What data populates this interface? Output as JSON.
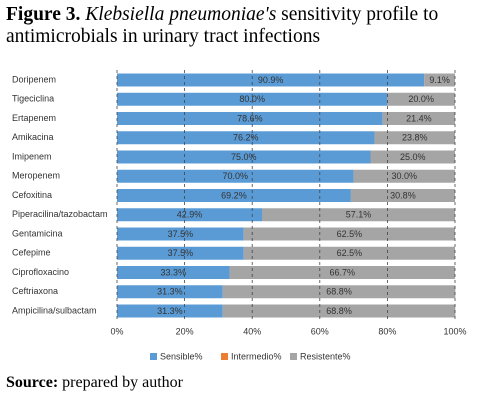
{
  "chart_data": {
    "type": "stacked_barh",
    "title": [
      "Figure 3.",
      "Klebsiella pneumoniae's",
      "sensitivity profile to antimicrobials in urinary tract infections"
    ],
    "source": [
      "Source:",
      "prepared by author"
    ],
    "categories": [
      "Doripenem",
      "Tigeciclina",
      "Ertapenem",
      "Amikacina",
      "Imipenem",
      "Meropenem",
      "Cefoxitina",
      "Piperacilina/tazobactam",
      "Gentamicina",
      "Cefepime",
      "Ciprofloxacino",
      "Ceftriaxona",
      "Ampicilina/sulbactam"
    ],
    "series": [
      {
        "name": "Sensible%",
        "color": "#5b9bd5",
        "values": [
          90.9,
          80.0,
          78.6,
          76.2,
          75.0,
          70.0,
          69.2,
          42.9,
          37.5,
          37.5,
          33.3,
          31.3,
          31.3
        ],
        "value_labels": [
          "90.9%",
          "80.0%",
          "78.6%",
          "76.2%",
          "75.0%",
          "70.0%",
          "69.2%",
          "42.9%",
          "37.5%",
          "37.5%",
          "33.3%",
          "31.3%",
          "31.3%"
        ]
      },
      {
        "name": "Intermedio%",
        "color": "#ed7d31",
        "values": [
          0,
          0,
          0,
          0,
          0,
          0,
          0,
          0,
          0,
          0,
          0,
          0,
          0
        ]
      },
      {
        "name": "Resistente%",
        "color": "#a5a5a5",
        "values": [
          9.1,
          20.0,
          21.4,
          23.8,
          25.0,
          30.0,
          30.8,
          57.1,
          62.5,
          62.5,
          66.7,
          68.8,
          68.8
        ],
        "value_labels": [
          "9.1%",
          "20.0%",
          "21.4%",
          "23.8%",
          "25.0%",
          "30.0%",
          "30.8%",
          "57.1%",
          "62.5%",
          "62.5%",
          "66.7%",
          "68.8%",
          "68.8%"
        ]
      }
    ],
    "xlim": [
      0,
      100
    ],
    "xticks": [
      {
        "value": 0,
        "label": "0%"
      },
      {
        "value": 20,
        "label": "20%"
      },
      {
        "value": 40,
        "label": "40%"
      },
      {
        "value": 60,
        "label": "60%"
      },
      {
        "value": 80,
        "label": "80%"
      },
      {
        "value": 100,
        "label": "100%"
      }
    ],
    "grid": true,
    "legend": "bottom"
  }
}
